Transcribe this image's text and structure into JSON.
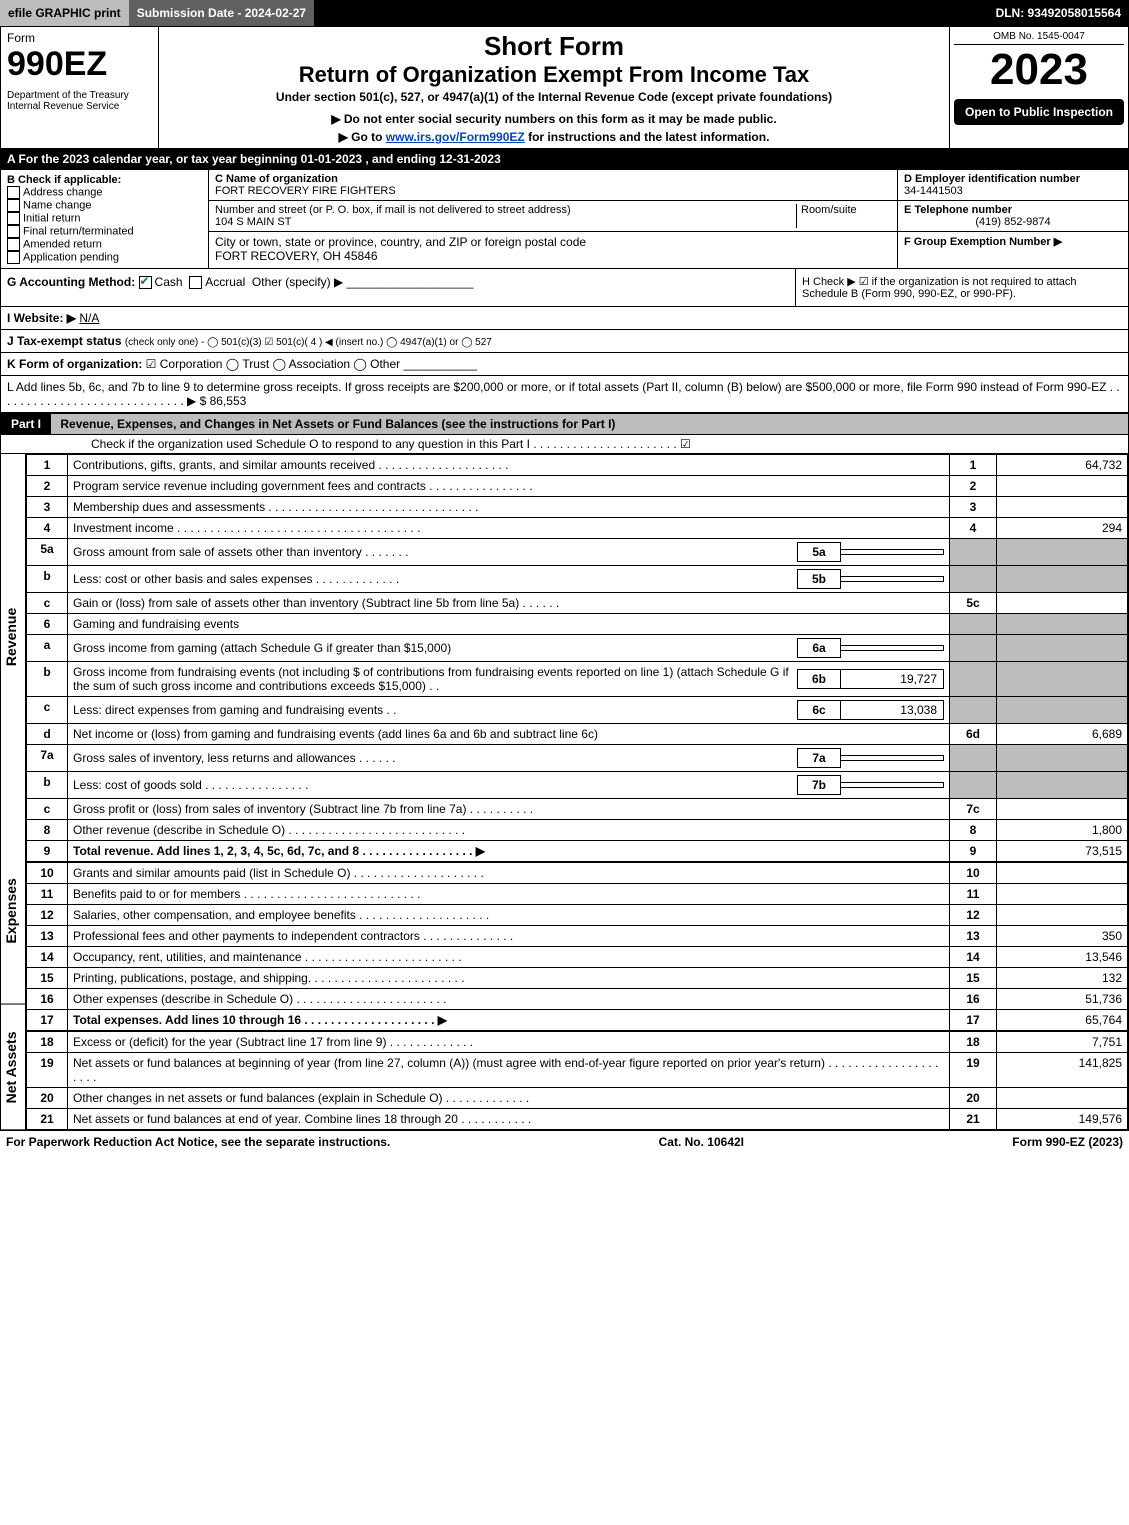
{
  "topbar": {
    "efile": "efile GRAPHIC print",
    "submission": "Submission Date - 2024-02-27",
    "dln_label": "DLN: 93492058015564"
  },
  "header": {
    "form_word": "Form",
    "form_no": "990EZ",
    "dept": "Department of the Treasury\nInternal Revenue Service",
    "title1": "Short Form",
    "title2": "Return of Organization Exempt From Income Tax",
    "subtitle": "Under section 501(c), 527, or 4947(a)(1) of the Internal Revenue Code (except private foundations)",
    "warn": "▶ Do not enter social security numbers on this form as it may be made public.",
    "goto_prefix": "▶ Go to ",
    "goto_link": "www.irs.gov/Form990EZ",
    "goto_suffix": " for instructions and the latest information.",
    "omb": "OMB No. 1545-0047",
    "year": "2023",
    "open": "Open to Public Inspection"
  },
  "line_a": "A  For the 2023 calendar year, or tax year beginning 01-01-2023 , and ending 12-31-2023",
  "b": {
    "label": "B  Check if applicable:",
    "items": [
      "Address change",
      "Name change",
      "Initial return",
      "Final return/terminated",
      "Amended return",
      "Application pending"
    ]
  },
  "c": {
    "name_label": "C Name of organization",
    "name": "FORT RECOVERY FIRE FIGHTERS",
    "street_label": "Number and street (or P. O. box, if mail is not delivered to street address)",
    "room_label": "Room/suite",
    "street": "104 S MAIN ST",
    "city_label": "City or town, state or province, country, and ZIP or foreign postal code",
    "city": "FORT RECOVERY, OH  45846"
  },
  "d": {
    "label": "D Employer identification number",
    "value": "34-1441503"
  },
  "e": {
    "label": "E Telephone number",
    "value": "(419) 852-9874"
  },
  "f": {
    "label": "F Group Exemption Number  ▶",
    "value": ""
  },
  "g": {
    "label": "G Accounting Method:",
    "cash": "Cash",
    "accrual": "Accrual",
    "other": "Other (specify) ▶"
  },
  "h": {
    "text": "H  Check ▶ ☑ if the organization is not required to attach Schedule B (Form 990, 990-EZ, or 990-PF)."
  },
  "i": {
    "label": "I Website: ▶",
    "value": "N/A"
  },
  "j": {
    "label": "J Tax-exempt status",
    "rest": "(check only one) - ◯ 501(c)(3) ☑ 501(c)( 4 ) ◀ (insert no.) ◯ 4947(a)(1) or ◯ 527"
  },
  "k": {
    "label": "K Form of organization:",
    "rest": "☑ Corporation  ◯ Trust  ◯ Association  ◯ Other"
  },
  "l": {
    "text": "L Add lines 5b, 6c, and 7b to line 9 to determine gross receipts. If gross receipts are $200,000 or more, or if total assets (Part II, column (B) below) are $500,000 or more, file Form 990 instead of Form 990-EZ . . . . . . . . . . . . . . . . . . . . . . . . . . . . . ▶ $ 86,553"
  },
  "part1": {
    "label": "Part I",
    "title": "Revenue, Expenses, and Changes in Net Assets or Fund Balances (see the instructions for Part I)",
    "check": "Check if the organization used Schedule O to respond to any question in this Part I . . . . . . . . . . . . . . . . . . . . . . ☑"
  },
  "sections": {
    "revenue": "Revenue",
    "expenses": "Expenses",
    "netassets": "Net Assets"
  },
  "lines": [
    {
      "n": "1",
      "d": "Contributions, gifts, grants, and similar amounts received . . . . . . . . . . . . . . . . . . . .",
      "r": "1",
      "v": "64,732"
    },
    {
      "n": "2",
      "d": "Program service revenue including government fees and contracts . . . . . . . . . . . . . . . .",
      "r": "2",
      "v": ""
    },
    {
      "n": "3",
      "d": "Membership dues and assessments . . . . . . . . . . . . . . . . . . . . . . . . . . . . . . . .",
      "r": "3",
      "v": ""
    },
    {
      "n": "4",
      "d": "Investment income . . . . . . . . . . . . . . . . . . . . . . . . . . . . . . . . . . . . .",
      "r": "4",
      "v": "294"
    },
    {
      "n": "5a",
      "d": "Gross amount from sale of assets other than inventory . . . . . . .",
      "sub": "5a",
      "subv": "",
      "shade": true
    },
    {
      "n": "b",
      "d": "Less: cost or other basis and sales expenses . . . . . . . . . . . . .",
      "sub": "5b",
      "subv": "",
      "shade": true
    },
    {
      "n": "c",
      "d": "Gain or (loss) from sale of assets other than inventory (Subtract line 5b from line 5a) . . . . . .",
      "r": "5c",
      "v": ""
    },
    {
      "n": "6",
      "d": "Gaming and fundraising events",
      "shade": true,
      "noamt": true
    },
    {
      "n": "a",
      "d": "Gross income from gaming (attach Schedule G if greater than $15,000)",
      "sub": "6a",
      "subv": "",
      "shade": true
    },
    {
      "n": "b",
      "d": "Gross income from fundraising events (not including $                      of contributions from fundraising events reported on line 1) (attach Schedule G if the sum of such gross income and contributions exceeds $15,000)   . .",
      "sub": "6b",
      "subv": "19,727",
      "shade": true
    },
    {
      "n": "c",
      "d": "Less: direct expenses from gaming and fundraising events    . .",
      "sub": "6c",
      "subv": "13,038",
      "shade": true
    },
    {
      "n": "d",
      "d": "Net income or (loss) from gaming and fundraising events (add lines 6a and 6b and subtract line 6c)",
      "r": "6d",
      "v": "6,689"
    },
    {
      "n": "7a",
      "d": "Gross sales of inventory, less returns and allowances . . . . . .",
      "sub": "7a",
      "subv": "",
      "shade": true
    },
    {
      "n": "b",
      "d": "Less: cost of goods sold       . . . . . . . . . . . . . . . .",
      "sub": "7b",
      "subv": "",
      "shade": true
    },
    {
      "n": "c",
      "d": "Gross profit or (loss) from sales of inventory (Subtract line 7b from line 7a) . . . . . . . . . .",
      "r": "7c",
      "v": ""
    },
    {
      "n": "8",
      "d": "Other revenue (describe in Schedule O) . . . . . . . . . . . . . . . . . . . . . . . . . . .",
      "r": "8",
      "v": "1,800"
    },
    {
      "n": "9",
      "d": "Total revenue. Add lines 1, 2, 3, 4, 5c, 6d, 7c, and 8  . . . . . . . . . . . . . . . . . ▶",
      "r": "9",
      "v": "73,515",
      "bold": true
    }
  ],
  "exp": [
    {
      "n": "10",
      "d": "Grants and similar amounts paid (list in Schedule O) . . . . . . . . . . . . . . . . . . . .",
      "r": "10",
      "v": ""
    },
    {
      "n": "11",
      "d": "Benefits paid to or for members    . . . . . . . . . . . . . . . . . . . . . . . . . . .",
      "r": "11",
      "v": ""
    },
    {
      "n": "12",
      "d": "Salaries, other compensation, and employee benefits . . . . . . . . . . . . . . . . . . . .",
      "r": "12",
      "v": ""
    },
    {
      "n": "13",
      "d": "Professional fees and other payments to independent contractors . . . . . . . . . . . . . .",
      "r": "13",
      "v": "350"
    },
    {
      "n": "14",
      "d": "Occupancy, rent, utilities, and maintenance . . . . . . . . . . . . . . . . . . . . . . . .",
      "r": "14",
      "v": "13,546"
    },
    {
      "n": "15",
      "d": "Printing, publications, postage, and shipping. . . . . . . . . . . . . . . . . . . . . . . .",
      "r": "15",
      "v": "132"
    },
    {
      "n": "16",
      "d": "Other expenses (describe in Schedule O)    . . . . . . . . . . . . . . . . . . . . . . .",
      "r": "16",
      "v": "51,736"
    },
    {
      "n": "17",
      "d": "Total expenses. Add lines 10 through 16    . . . . . . . . . . . . . . . . . . . . ▶",
      "r": "17",
      "v": "65,764",
      "bold": true
    }
  ],
  "net": [
    {
      "n": "18",
      "d": "Excess or (deficit) for the year (Subtract line 17 from line 9)       . . . . . . . . . . . . .",
      "r": "18",
      "v": "7,751"
    },
    {
      "n": "19",
      "d": "Net assets or fund balances at beginning of year (from line 27, column (A)) (must agree with end-of-year figure reported on prior year's return) . . . . . . . . . . . . . . . . . . . . .",
      "r": "19",
      "v": "141,825"
    },
    {
      "n": "20",
      "d": "Other changes in net assets or fund balances (explain in Schedule O) . . . . . . . . . . . . .",
      "r": "20",
      "v": ""
    },
    {
      "n": "21",
      "d": "Net assets or fund balances at end of year. Combine lines 18 through 20 . . . . . . . . . . .",
      "r": "21",
      "v": "149,576"
    }
  ],
  "footer": {
    "left": "For Paperwork Reduction Act Notice, see the separate instructions.",
    "mid": "Cat. No. 10642I",
    "right": "Form 990-EZ (2023)"
  },
  "colors": {
    "darkbg": "#000000",
    "gray": "#bdbdbd",
    "link": "#0645ad"
  }
}
